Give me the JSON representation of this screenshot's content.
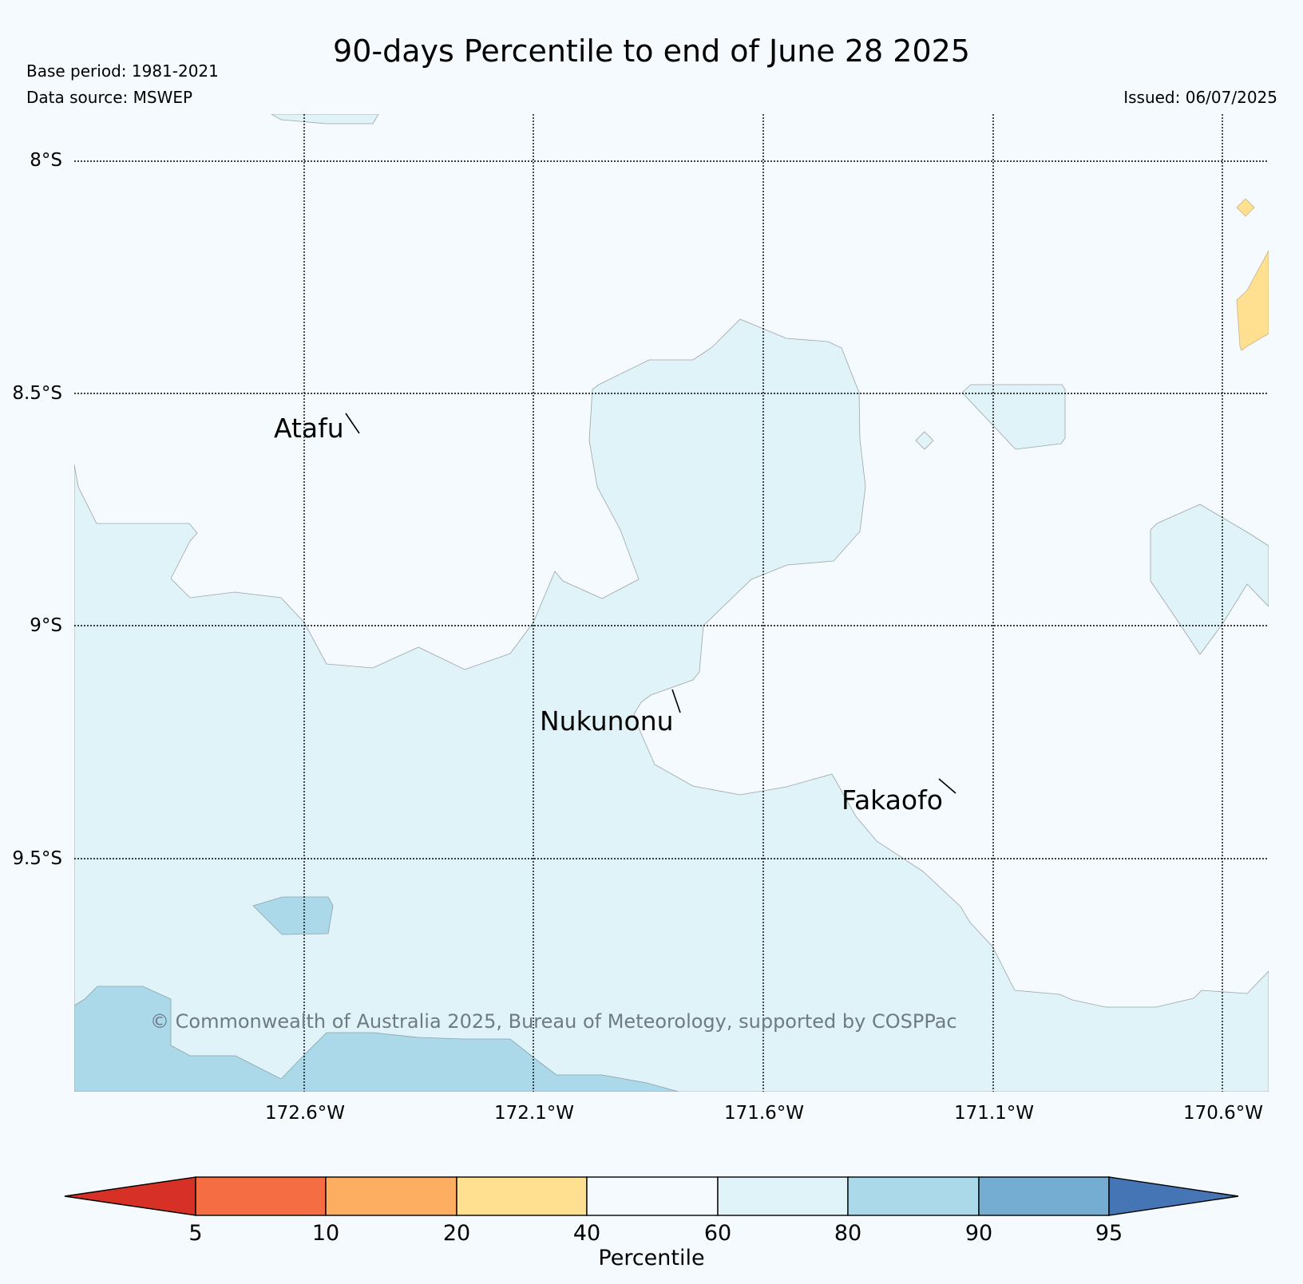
{
  "header": {
    "title": "90-days Percentile to end of June 28 2025",
    "base_period": "Base period: 1981-2021",
    "data_source": "Data source: MSWEP",
    "issued": "Issued: 06/07/2025"
  },
  "map": {
    "lat_labels": [
      "8°S",
      "8.5°S",
      "9°S",
      "9.5°S"
    ],
    "lon_labels": [
      "172.6°W",
      "172.1°W",
      "171.6°W",
      "171.1°W",
      "170.6°W"
    ],
    "places": [
      "Atafu",
      "Nukunonu",
      "Fakaofo"
    ],
    "copyright": "© Commonwealth of Australia 2025, Bureau of Meteorology, supported by COSPPac"
  },
  "colorbar": {
    "label": "Percentile",
    "ticks": [
      "5",
      "10",
      "20",
      "40",
      "60",
      "80",
      "90",
      "95"
    ],
    "colors": {
      "below_5": "#d73027",
      "5_10": "#f46d43",
      "10_20": "#fdae61",
      "20_40": "#fee090",
      "40_60": "#f4fafd",
      "60_80": "#e0f3f8",
      "80_90": "#abd9e9",
      "90_95": "#74add1",
      "above_95": "#4575b4"
    }
  }
}
